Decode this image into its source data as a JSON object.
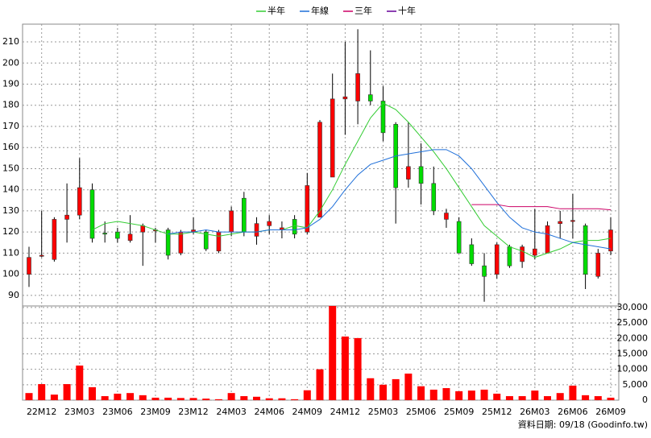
{
  "chart_data": {
    "type": "candlestick",
    "legend": "top",
    "grid": true,
    "up_color": "#ff0000",
    "down_color": "#00dd00",
    "volume_color": "#ff0000",
    "categories": [
      null,
      "22M12",
      null,
      null,
      "23M03",
      null,
      null,
      "23M06",
      null,
      null,
      "23M09",
      null,
      null,
      "23M12",
      null,
      null,
      "24M03",
      null,
      null,
      "24M06",
      null,
      null,
      "24M09",
      null,
      null,
      "24M12",
      null,
      null,
      "25M03",
      null,
      null,
      "25M06",
      null,
      null,
      "25M09",
      null,
      null,
      "25M12",
      null,
      null,
      "26M03",
      null,
      null,
      "26M06",
      null,
      null,
      "26M09"
    ],
    "open": [
      100,
      108.5,
      107,
      126,
      128,
      140,
      119.5,
      120,
      116,
      120,
      120.5,
      121,
      110,
      120,
      120,
      111,
      120,
      136,
      118,
      123,
      121,
      126,
      120,
      127,
      146,
      183,
      182,
      185,
      182,
      171,
      145,
      151,
      143,
      126,
      125,
      114,
      104,
      100,
      113,
      106,
      109,
      110,
      124,
      125,
      123,
      99,
      111
    ],
    "high": [
      113,
      130,
      127,
      143,
      155,
      143,
      125,
      122,
      128,
      124,
      122,
      122,
      121,
      127,
      121,
      121,
      132,
      139,
      127,
      128,
      125,
      128,
      148,
      173,
      195,
      210,
      216,
      206,
      189,
      172,
      172,
      162,
      151,
      131,
      127,
      117,
      110,
      115,
      114,
      114,
      131,
      125,
      130,
      138,
      124,
      112,
      127
    ],
    "low": [
      94,
      108,
      106,
      115,
      126,
      115,
      115,
      115,
      115,
      104,
      115,
      107,
      109,
      119,
      111,
      110,
      118,
      118,
      114,
      119,
      117,
      117,
      119,
      128,
      147,
      166,
      171,
      180,
      163,
      124,
      141,
      133,
      128,
      122,
      110,
      104,
      87,
      98,
      103,
      103,
      107,
      110,
      117,
      117,
      93,
      98,
      109
    ],
    "close": [
      108,
      109,
      126,
      128,
      141,
      117,
      119,
      117,
      119,
      123,
      121,
      109,
      120,
      121,
      112,
      120,
      130,
      120,
      124,
      125,
      122,
      119,
      142,
      172,
      183,
      184,
      195,
      182,
      167,
      141,
      151,
      143,
      130,
      129,
      110,
      105,
      99,
      114,
      104,
      113,
      112,
      123,
      125,
      125.5,
      100,
      110,
      121
    ],
    "volume": [
      2300,
      5200,
      1800,
      5200,
      11200,
      4200,
      1300,
      2100,
      2300,
      1600,
      800,
      800,
      700,
      700,
      500,
      300,
      2300,
      1300,
      1100,
      600,
      600,
      300,
      3200,
      10000,
      30500,
      20600,
      20100,
      7100,
      5000,
      6800,
      8600,
      4500,
      3400,
      3900,
      2900,
      3100,
      3400,
      2100,
      1300,
      1300,
      3100,
      1300,
      2300,
      4700,
      1600,
      1300,
      800
    ],
    "series": [
      {
        "name": "半年",
        "color": "#33cc33",
        "values": [
          null,
          null,
          null,
          null,
          null,
          121,
          124,
          125,
          124,
          123,
          121,
          119,
          119,
          120,
          119,
          118,
          119,
          120,
          120,
          121,
          121,
          123,
          122,
          130,
          140,
          152,
          163,
          174,
          181,
          178,
          172,
          165,
          158,
          150,
          141,
          132,
          123,
          118,
          113,
          111,
          108,
          110,
          112,
          115,
          116,
          116,
          117
        ]
      },
      {
        "name": "年線",
        "color": "#1e6fd9",
        "values": [
          null,
          null,
          null,
          null,
          null,
          null,
          null,
          null,
          null,
          null,
          null,
          119,
          120,
          120,
          121,
          120,
          120,
          120,
          120,
          121,
          121,
          121,
          122,
          126,
          132,
          140,
          147,
          152,
          154,
          156,
          157,
          158,
          159,
          159,
          156,
          150,
          142,
          134,
          127,
          122,
          120,
          119,
          117,
          115,
          114,
          113,
          112
        ]
      },
      {
        "name": "三年",
        "color": "#cc0066",
        "values": [
          null,
          null,
          null,
          null,
          null,
          null,
          null,
          null,
          null,
          null,
          null,
          null,
          null,
          null,
          null,
          null,
          null,
          null,
          null,
          null,
          null,
          null,
          null,
          null,
          null,
          null,
          null,
          null,
          null,
          null,
          null,
          null,
          null,
          null,
          null,
          133,
          133,
          133,
          132,
          132,
          132,
          132,
          131,
          131,
          131,
          131,
          130.5
        ]
      },
      {
        "name": "十年",
        "color": "#660099",
        "values": [
          null,
          null,
          null,
          null,
          null,
          null,
          null,
          null,
          null,
          null,
          null,
          null,
          null,
          null,
          null,
          null,
          null,
          null,
          null,
          null,
          null,
          null,
          null,
          null,
          null,
          null,
          null,
          null,
          null,
          null,
          null,
          null,
          null,
          null,
          null,
          null,
          null,
          null,
          null,
          null,
          null,
          null,
          null,
          null,
          null,
          null,
          null
        ]
      }
    ],
    "ylim": [
      85,
      218.4
    ],
    "yticks": [
      90,
      100,
      110,
      120,
      130,
      140,
      150,
      160,
      170,
      180,
      190,
      200,
      210
    ],
    "vlim": [
      0,
      30500
    ],
    "vticks": [
      0,
      {
        "value": 5000,
        "label": "5,000"
      },
      {
        "value": 10000,
        "label": "10,000"
      },
      {
        "value": 15000,
        "label": "15,000"
      },
      {
        "value": 20000,
        "label": "20,000"
      },
      {
        "value": 25000,
        "label": "25,000"
      },
      {
        "value": 30000,
        "label": "30,000"
      }
    ],
    "footnote": "資料日期: 09/18 (Goodinfo.tw)"
  }
}
